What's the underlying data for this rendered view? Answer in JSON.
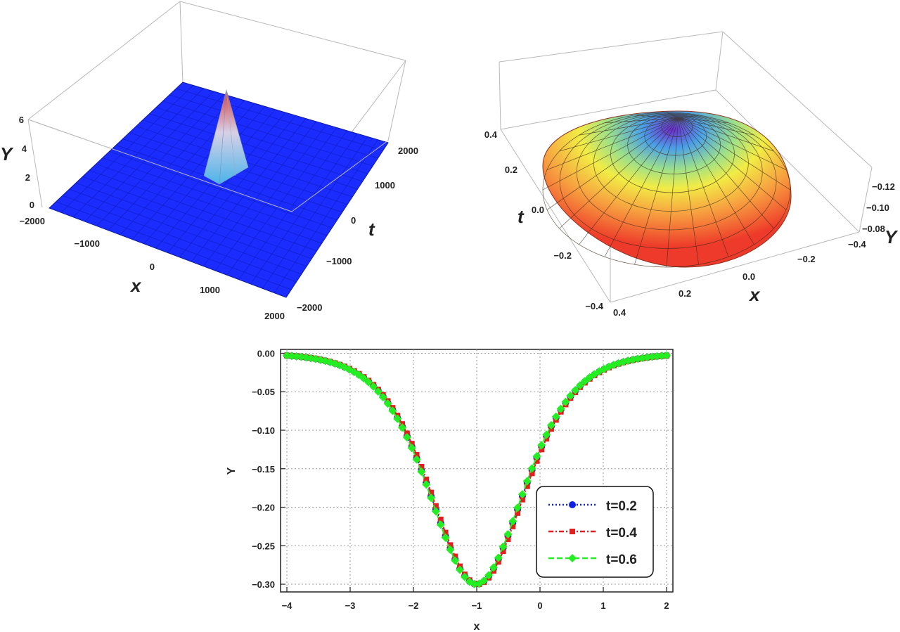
{
  "chart_data": [
    {
      "type": "surface3d",
      "xlabel": "x",
      "ylabel": "t",
      "zlabel": "Y",
      "x_ticks": [
        "−2000",
        "−1000",
        "0",
        "1000",
        "2000"
      ],
      "t_ticks": [
        "−2000",
        "−1000",
        "0",
        "1000",
        "2000"
      ],
      "z_ticks": [
        "0",
        "2",
        "4",
        "6"
      ],
      "xlim": [
        -2000,
        2000
      ],
      "tlim": [
        -2000,
        2000
      ],
      "zlim": [
        0,
        6
      ],
      "peak": {
        "x": 0,
        "t": 0,
        "Y": 6
      },
      "colors": {
        "surface": "#1a2cff",
        "peak_top": "#d83a3a",
        "peak_base": "#5ab8e8"
      }
    },
    {
      "type": "surface3d",
      "xlabel": "x",
      "ylabel": "t",
      "zlabel": "Y",
      "x_ticks": [
        "−0.4",
        "−0.2",
        "0.0",
        "0.2",
        "0.4"
      ],
      "t_ticks": [
        "−0.2",
        "0.0",
        "0.2",
        "0.4"
      ],
      "z_ticks": [
        "−0.12",
        "−0.10",
        "−0.08"
      ],
      "y_side_ticks": [
        "−0.4",
        "−0.2",
        "0.0",
        "0.2",
        "0.4"
      ],
      "xlim": [
        -0.4,
        0.4
      ],
      "tlim": [
        -0.4,
        0.4
      ],
      "zlim": [
        -0.13,
        -0.07
      ],
      "colors": {
        "top": "#6a2ccf",
        "mid": "#f2ec45",
        "edge": "#ee3a2a"
      }
    },
    {
      "type": "line",
      "xlabel": "x",
      "ylabel": "Y",
      "xlim": [
        -4.1,
        2.1
      ],
      "ylim": [
        -0.31,
        0.005
      ],
      "x_ticks": [
        -4,
        -3,
        -2,
        -1,
        0,
        1,
        2
      ],
      "y_ticks": [
        0.0,
        -0.05,
        -0.1,
        -0.15,
        -0.2,
        -0.25,
        -0.3
      ],
      "y_tick_labels": [
        "0.00",
        "−0.05",
        "−0.10",
        "−0.15",
        "−0.20",
        "−0.25",
        "−0.30"
      ],
      "x_tick_labels": [
        "−4",
        "−3",
        "−2",
        "−1",
        "0",
        "1",
        "2"
      ],
      "grid": true,
      "legend_position": "bottom-right",
      "curve": {
        "center": -1.0,
        "amplitude": -0.3,
        "width": 1.0,
        "x_min": -4,
        "x_max": 2,
        "points": 80
      },
      "series": [
        {
          "name": "t=0.2",
          "color": "#1020e0",
          "marker": "circle",
          "dash": "2,3",
          "shift": 0.0
        },
        {
          "name": "t=0.4",
          "color": "#e02020",
          "marker": "square",
          "dash": "7,3,2,3",
          "shift": 0.02
        },
        {
          "name": "t=0.6",
          "color": "#22ee22",
          "marker": "diamond",
          "dash": "8,4",
          "shift": -0.01
        }
      ]
    }
  ]
}
